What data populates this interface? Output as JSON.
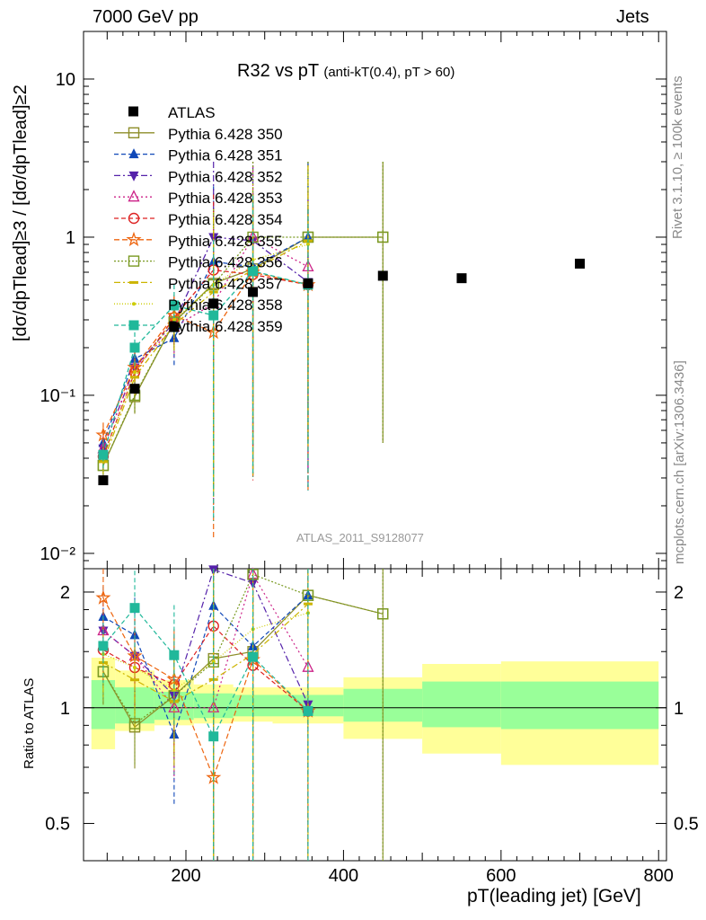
{
  "header": {
    "left": "7000 GeV pp",
    "right": "Jets",
    "side_top": "Rivet 3.1.10, ≥ 100k events",
    "side_bottom": "mcplots.cern.ch [arXiv:1306.3436]"
  },
  "plot_title": {
    "main": "R32 vs pT",
    "sub": "(anti-kT(0.4), pT > 60)"
  },
  "watermark": "ATLAS_2011_S9128077",
  "axis": {
    "ylabel_main": "[dσ/dpTlead]≥3 / [dσ/dpTlead]≥2",
    "ylabel_ratio": "Ratio to ATLAS",
    "xlabel": "pT(leading jet) [GeV]"
  },
  "chart_data": {
    "type": "scatter",
    "x_scale": "linear",
    "xlim": [
      70,
      810
    ],
    "y_scale": "log",
    "ylim": [
      0.008,
      20
    ],
    "ratio_ylim": [
      0.4,
      2.3
    ],
    "x_ticks": [
      "200",
      "400",
      "600",
      "800"
    ],
    "y_ticks": [
      "10⁻²",
      "10⁻¹",
      "1",
      "10"
    ],
    "ratio_ticks": [
      "0.5",
      "1",
      "2"
    ],
    "bins": [
      {
        "lo": 80,
        "hi": 110,
        "band1": [
          0.88,
          1.18
        ],
        "band2": [
          0.78,
          1.35
        ]
      },
      {
        "lo": 110,
        "hi": 160,
        "band1": [
          0.91,
          1.13
        ],
        "band2": [
          0.87,
          1.25
        ]
      },
      {
        "lo": 160,
        "hi": 210,
        "band1": [
          0.93,
          1.1
        ],
        "band2": [
          0.9,
          1.18
        ]
      },
      {
        "lo": 210,
        "hi": 260,
        "band1": [
          0.94,
          1.09
        ],
        "band2": [
          0.91,
          1.15
        ]
      },
      {
        "lo": 260,
        "hi": 310,
        "band1": [
          0.95,
          1.08
        ],
        "band2": [
          0.92,
          1.13
        ]
      },
      {
        "lo": 310,
        "hi": 400,
        "band1": [
          0.95,
          1.08
        ],
        "band2": [
          0.91,
          1.13
        ]
      },
      {
        "lo": 400,
        "hi": 500,
        "band1": [
          0.92,
          1.12
        ],
        "band2": [
          0.83,
          1.2
        ]
      },
      {
        "lo": 500,
        "hi": 600,
        "band1": [
          0.89,
          1.17
        ],
        "band2": [
          0.76,
          1.3
        ]
      },
      {
        "lo": 600,
        "hi": 800,
        "band1": [
          0.88,
          1.17
        ],
        "band2": [
          0.71,
          1.32
        ]
      }
    ],
    "atlas": {
      "name": "ATLAS",
      "x": [
        95,
        135,
        185,
        235,
        285,
        355,
        450,
        550,
        700
      ],
      "y": [
        0.029,
        0.11,
        0.27,
        0.38,
        0.45,
        0.51,
        0.57,
        0.55,
        0.68
      ]
    },
    "series": [
      {
        "name": "Pythia 6.428 350",
        "color": "#8e8e2a",
        "marker": "sq-open",
        "dash": "",
        "x": [
          95,
          135,
          185,
          235,
          285,
          355,
          450
        ],
        "y": [
          0.036,
          0.098,
          0.29,
          0.51,
          0.63,
          1.0,
          1.0
        ],
        "err": [
          0.18,
          0.22,
          0.3,
          2.0,
          2.0,
          2.0,
          2.0
        ]
      },
      {
        "name": "Pythia 6.428 351",
        "color": "#1048b8",
        "marker": "tri-up",
        "dash": "5,3",
        "x": [
          95,
          135,
          185,
          235,
          285,
          355
        ],
        "y": [
          0.05,
          0.17,
          0.23,
          0.7,
          0.65,
          1.0
        ],
        "err": [
          0.2,
          0.25,
          0.35,
          2.0,
          2.0,
          2.0
        ]
      },
      {
        "name": "Pythia 6.428 352",
        "color": "#5522aa",
        "marker": "tri-down",
        "dash": "7,3,2,3",
        "x": [
          95,
          135,
          185,
          235,
          285,
          355
        ],
        "y": [
          0.046,
          0.15,
          0.29,
          1.0,
          0.95,
          0.52
        ],
        "err": [
          0.2,
          0.25,
          0.35,
          2.0,
          2.0,
          2.0
        ]
      },
      {
        "name": "Pythia 6.428 353",
        "color": "#cc2288",
        "marker": "tri-open",
        "dash": "2,3",
        "x": [
          95,
          135,
          185,
          235,
          285,
          355
        ],
        "y": [
          0.046,
          0.15,
          0.27,
          0.38,
          1.0,
          0.65
        ],
        "err": [
          0.2,
          0.25,
          0.35,
          2.0,
          2.0,
          2.0
        ]
      },
      {
        "name": "Pythia 6.428 354",
        "color": "#dd2222",
        "marker": "circ-open",
        "dash": "5,3",
        "x": [
          95,
          135,
          185,
          235,
          285,
          355
        ],
        "y": [
          0.041,
          0.14,
          0.31,
          0.62,
          0.58,
          0.5
        ],
        "err": [
          0.2,
          0.25,
          0.35,
          2.0,
          2.0,
          2.0
        ]
      },
      {
        "name": "Pythia 6.428 355",
        "color": "#ee6610",
        "marker": "star-open",
        "dash": "6,3",
        "x": [
          95,
          135,
          185,
          235,
          285,
          355
        ],
        "y": [
          0.056,
          0.15,
          0.32,
          0.25,
          0.6,
          0.5
        ],
        "err": [
          0.2,
          0.25,
          0.35,
          2.0,
          2.0,
          2.0
        ]
      },
      {
        "name": "Pythia 6.428 356",
        "color": "#7a9a22",
        "marker": "sq-open",
        "dash": "2,2",
        "x": [
          95,
          135,
          185,
          235,
          285,
          355,
          450
        ],
        "y": [
          0.036,
          0.1,
          0.29,
          0.5,
          1.0,
          1.0,
          1.0
        ],
        "err": [
          0.18,
          0.22,
          0.3,
          2.0,
          2.0,
          2.0,
          2.0
        ]
      },
      {
        "name": "Pythia 6.428 357",
        "color": "#ccb400",
        "marker": "dash-pt",
        "dash": "7,3,2,3",
        "x": [
          95,
          135,
          185,
          235,
          285,
          355
        ],
        "y": [
          0.038,
          0.13,
          0.28,
          0.45,
          0.62,
          0.95
        ],
        "err": [
          0.2,
          0.25,
          0.35,
          2.0,
          2.0,
          2.0
        ]
      },
      {
        "name": "Pythia 6.428 358",
        "color": "#cccc00",
        "marker": "dot-pt",
        "dash": "1,2",
        "x": [
          95,
          135,
          185,
          235,
          285,
          355
        ],
        "y": [
          0.04,
          0.14,
          0.3,
          0.5,
          0.72,
          0.9
        ],
        "err": [
          0.2,
          0.25,
          0.35,
          2.0,
          2.0,
          2.0
        ]
      },
      {
        "name": "Pythia 6.428 359",
        "color": "#20b89a",
        "marker": "sq-fill",
        "dash": "5,3",
        "x": [
          95,
          135,
          185,
          235,
          285,
          355
        ],
        "y": [
          0.042,
          0.2,
          0.37,
          0.32,
          0.61,
          0.5
        ],
        "err": [
          0.2,
          0.25,
          0.35,
          2.0,
          2.0,
          2.0
        ]
      }
    ]
  }
}
